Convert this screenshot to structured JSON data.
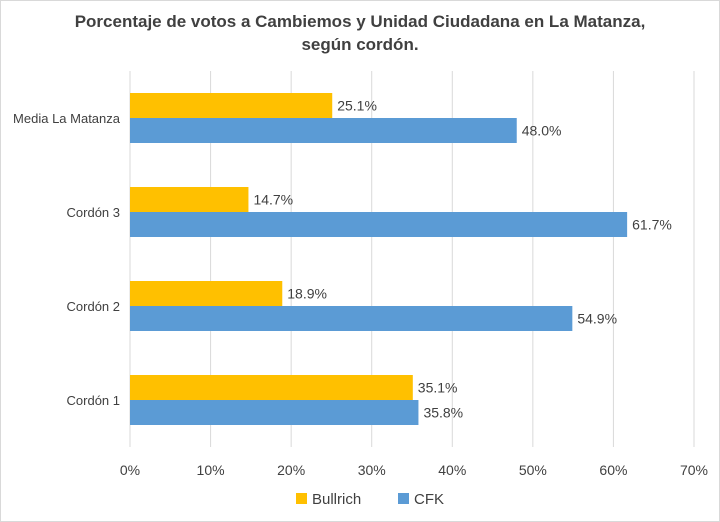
{
  "chart_data": {
    "type": "bar",
    "orientation": "horizontal",
    "title_lines": [
      "Porcentaje de votos a Cambiemos y Unidad Ciudadana en La Matanza,",
      "según cordón."
    ],
    "categories": [
      "Media La Matanza",
      "Cordón 3",
      "Cordón 2",
      "Cordón 1"
    ],
    "series": [
      {
        "name": "Bullrich",
        "color": "#FFC000",
        "values": [
          25.1,
          14.7,
          18.9,
          35.1
        ],
        "labels": [
          "25.1%",
          "14.7%",
          "18.9%",
          "35.1%"
        ]
      },
      {
        "name": "CFK",
        "color": "#5B9BD5",
        "values": [
          48.0,
          61.7,
          54.9,
          35.8
        ],
        "labels": [
          "48.0%",
          "61.7%",
          "54.9%",
          "35.8%"
        ]
      }
    ],
    "xlim": [
      0,
      70
    ],
    "x_ticks": [
      0,
      10,
      20,
      30,
      40,
      50,
      60,
      70
    ],
    "x_tick_labels": [
      "0%",
      "10%",
      "20%",
      "30%",
      "40%",
      "50%",
      "60%",
      "70%"
    ],
    "grid": "vertical",
    "gridline_color": "#d9d9d9",
    "legend_position": "bottom"
  }
}
